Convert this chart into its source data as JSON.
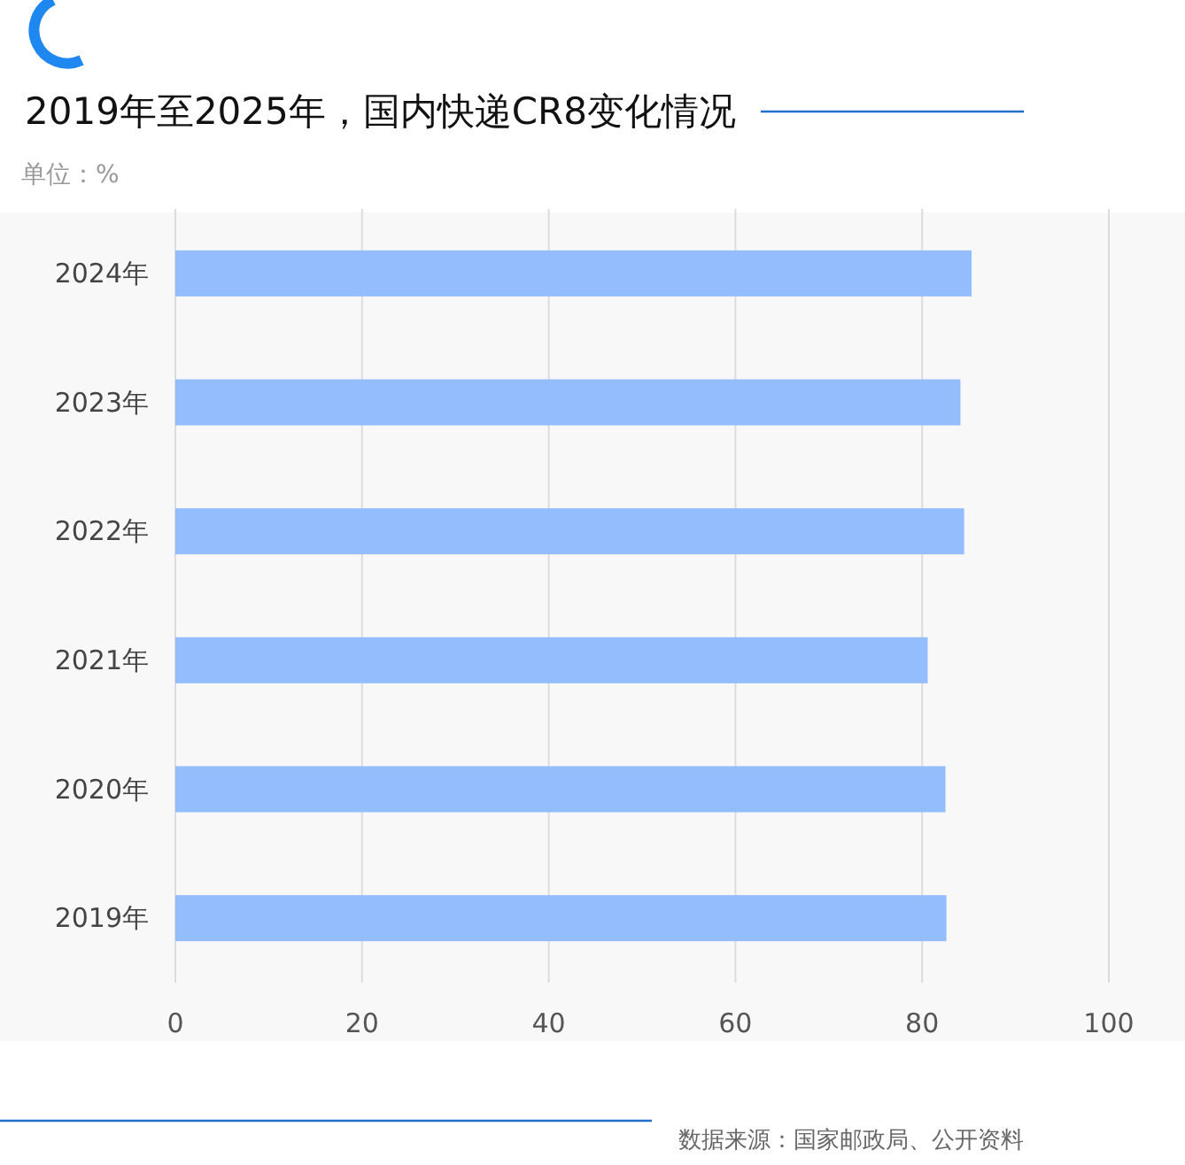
{
  "chart_data": {
    "type": "bar",
    "orientation": "horizontal",
    "title": "2019年至2025年，国内快递CR8变化情况",
    "subtitle": "单位：%",
    "categories": [
      "2024年",
      "2023年",
      "2022年",
      "2021年",
      "2020年",
      "2019年"
    ],
    "values": [
      85.3,
      84.1,
      84.5,
      80.6,
      82.5,
      82.6
    ],
    "color": "#94bdfd",
    "xlim": [
      0,
      100
    ],
    "xticks": [
      0,
      20,
      40,
      60,
      80,
      100
    ],
    "grid": "x",
    "annotations": [
      "数据来源：国家邮政局、公开资料"
    ]
  }
}
